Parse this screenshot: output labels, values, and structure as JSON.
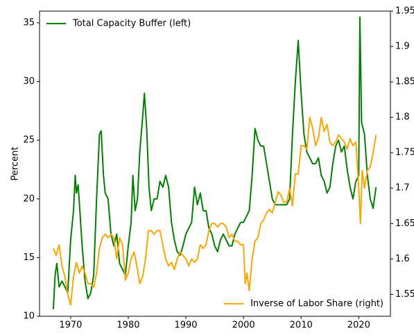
{
  "chart_data": {
    "type": "line",
    "ylabel": "Percent",
    "xlim": [
      1964.6,
      2025.5
    ],
    "xticks": [
      1970,
      1980,
      1990,
      2000,
      2010,
      2020
    ],
    "ylim": [
      10,
      36
    ],
    "yticks": [
      10,
      15,
      20,
      25,
      30,
      35
    ],
    "y2lim": [
      1.519,
      1.95
    ],
    "y2ticks": [
      1.55,
      1.6,
      1.65,
      1.7,
      1.75,
      1.8,
      1.85,
      1.9,
      1.95
    ],
    "series": [
      {
        "name": "Total Capacity Buffer (left)",
        "color": "#008000",
        "axis": "y",
        "legend_loc": "upper left",
        "x": [
          1967.0,
          1967.3,
          1967.6,
          1968.0,
          1968.5,
          1969.0,
          1969.5,
          1970.0,
          1970.5,
          1970.8,
          1971.0,
          1971.3,
          1971.6,
          1972.0,
          1972.5,
          1973.0,
          1973.5,
          1974.0,
          1974.5,
          1975.0,
          1975.3,
          1975.7,
          1976.0,
          1976.5,
          1977.0,
          1977.5,
          1978.0,
          1978.5,
          1979.0,
          1979.5,
          1980.0,
          1980.5,
          1980.8,
          1981.2,
          1981.6,
          1982.0,
          1982.5,
          1982.8,
          1983.2,
          1983.6,
          1984.0,
          1984.5,
          1985.0,
          1985.5,
          1986.0,
          1986.5,
          1987.0,
          1987.5,
          1988.0,
          1988.5,
          1989.0,
          1989.5,
          1990.0,
          1990.5,
          1991.0,
          1991.5,
          1992.0,
          1992.5,
          1993.0,
          1993.5,
          1994.0,
          1994.5,
          1995.0,
          1995.5,
          1996.0,
          1996.5,
          1997.0,
          1997.5,
          1998.0,
          1998.5,
          1999.0,
          1999.5,
          2000.0,
          2000.5,
          2001.0,
          2001.5,
          2002.0,
          2002.5,
          2003.0,
          2003.5,
          2004.0,
          2004.5,
          2005.0,
          2005.5,
          2006.0,
          2006.5,
          2007.0,
          2007.5,
          2008.0,
          2008.5,
          2009.0,
          2009.5,
          2010.0,
          2010.5,
          2011.0,
          2011.5,
          2012.0,
          2012.5,
          2013.0,
          2013.5,
          2014.0,
          2014.5,
          2015.0,
          2015.5,
          2016.0,
          2016.5,
          2017.0,
          2017.5,
          2018.0,
          2018.5,
          2019.0,
          2019.5,
          2020.0,
          2020.2,
          2020.5,
          2021.0,
          2021.5,
          2022.0,
          2022.5,
          2023.0
        ],
        "values": [
          10.6,
          13.5,
          14.5,
          12.5,
          13,
          12.5,
          12,
          16.5,
          19,
          22,
          20.5,
          21.2,
          19,
          16,
          13,
          11.5,
          12,
          13.5,
          20,
          25.5,
          25.8,
          22,
          20.5,
          20,
          17,
          16,
          17,
          14.5,
          14,
          13.5,
          16,
          18,
          22,
          19,
          20,
          24,
          27,
          29,
          26,
          21,
          19,
          20,
          20,
          21.5,
          21,
          22,
          21,
          18,
          16.5,
          15.5,
          15.2,
          16,
          17,
          17.5,
          18,
          21,
          19.5,
          20.5,
          19,
          19,
          17.5,
          17,
          16,
          15.5,
          16.5,
          17,
          16.5,
          16,
          16,
          17,
          17.5,
          18,
          18,
          18.5,
          19,
          22,
          26,
          25,
          24.5,
          24.5,
          23,
          21.5,
          20,
          19.5,
          19.5,
          19.5,
          19.5,
          19.5,
          20,
          25.5,
          30,
          33.5,
          29,
          25.5,
          24,
          23.5,
          23,
          23,
          23.5,
          22,
          21.5,
          20.5,
          21,
          23,
          24.5,
          25,
          24,
          24.5,
          22.5,
          21,
          20,
          21.5,
          22,
          35.5,
          26.5,
          25.5,
          22,
          20,
          19.2,
          21
        ]
      },
      {
        "name": "Inverse of Labor Share (right)",
        "color": "#ffa500",
        "axis": "y2",
        "legend_loc": "lower right",
        "x": [
          1967.0,
          1967.5,
          1968.0,
          1968.5,
          1969.0,
          1969.5,
          1970.0,
          1970.5,
          1971.0,
          1971.5,
          1972.0,
          1972.5,
          1973.0,
          1973.5,
          1974.0,
          1974.5,
          1975.0,
          1975.5,
          1976.0,
          1976.5,
          1977.0,
          1977.5,
          1978.0,
          1978.5,
          1979.0,
          1979.5,
          1980.0,
          1980.5,
          1981.0,
          1981.5,
          1982.0,
          1982.5,
          1983.0,
          1983.5,
          1984.0,
          1984.5,
          1985.0,
          1985.5,
          1986.0,
          1986.5,
          1987.0,
          1987.5,
          1988.0,
          1988.5,
          1989.0,
          1989.5,
          1990.0,
          1990.5,
          1991.0,
          1991.5,
          1992.0,
          1992.5,
          1993.0,
          1993.5,
          1994.0,
          1994.5,
          1995.0,
          1995.5,
          1996.0,
          1996.5,
          1997.0,
          1997.5,
          1998.0,
          1998.5,
          1999.0,
          1999.5,
          2000.0,
          2000.3,
          2000.6,
          2001.0,
          2001.5,
          2002.0,
          2002.5,
          2003.0,
          2003.5,
          2004.0,
          2004.5,
          2005.0,
          2005.5,
          2006.0,
          2006.5,
          2007.0,
          2007.5,
          2008.0,
          2008.5,
          2009.0,
          2009.5,
          2010.0,
          2010.5,
          2011.0,
          2011.5,
          2012.0,
          2012.5,
          2013.0,
          2013.5,
          2014.0,
          2014.5,
          2015.0,
          2015.5,
          2016.0,
          2016.5,
          2017.0,
          2017.5,
          2018.0,
          2018.5,
          2019.0,
          2019.5,
          2020.0,
          2020.3,
          2020.6,
          2021.0,
          2021.5,
          2022.0,
          2022.5,
          2023.0
        ],
        "values": [
          1.615,
          1.605,
          1.62,
          1.59,
          1.575,
          1.55,
          1.535,
          1.575,
          1.595,
          1.58,
          1.59,
          1.58,
          1.565,
          1.565,
          1.56,
          1.58,
          1.615,
          1.63,
          1.635,
          1.63,
          1.635,
          1.63,
          1.6,
          1.63,
          1.62,
          1.57,
          1.58,
          1.6,
          1.61,
          1.59,
          1.565,
          1.575,
          1.6,
          1.64,
          1.64,
          1.635,
          1.64,
          1.64,
          1.62,
          1.6,
          1.59,
          1.595,
          1.585,
          1.6,
          1.61,
          1.605,
          1.6,
          1.59,
          1.6,
          1.595,
          1.6,
          1.62,
          1.615,
          1.62,
          1.64,
          1.65,
          1.65,
          1.645,
          1.65,
          1.65,
          1.645,
          1.63,
          1.635,
          1.625,
          1.625,
          1.62,
          1.62,
          1.565,
          1.58,
          1.555,
          1.6,
          1.625,
          1.63,
          1.65,
          1.655,
          1.665,
          1.67,
          1.665,
          1.68,
          1.695,
          1.69,
          1.68,
          1.68,
          1.7,
          1.675,
          1.72,
          1.72,
          1.76,
          1.76,
          1.755,
          1.8,
          1.785,
          1.76,
          1.77,
          1.8,
          1.78,
          1.79,
          1.765,
          1.76,
          1.765,
          1.775,
          1.77,
          1.765,
          1.755,
          1.77,
          1.76,
          1.765,
          1.7,
          1.65,
          1.725,
          1.7,
          1.725,
          1.73,
          1.75,
          1.775
        ]
      }
    ]
  }
}
